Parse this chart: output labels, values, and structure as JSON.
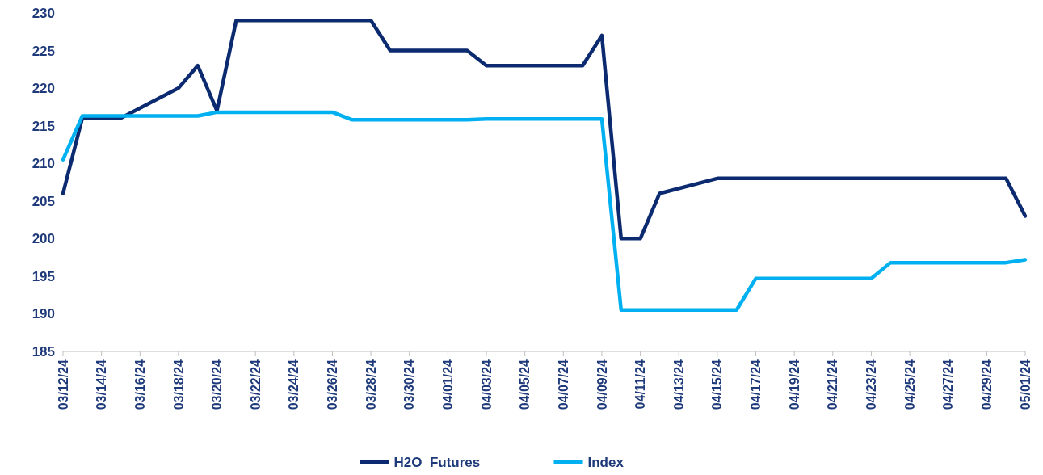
{
  "chart_data": {
    "type": "line",
    "ylim": [
      185,
      230
    ],
    "yticks": [
      185,
      190,
      195,
      200,
      205,
      210,
      215,
      220,
      225,
      230
    ],
    "xlim": [
      "--03-12",
      "--05-01"
    ],
    "xticks": [
      {
        "value": "--03-12",
        "label": "03/12/24"
      },
      {
        "value": "--03-14",
        "label": "03/14/24"
      },
      {
        "value": "--03-16",
        "label": "03/16/24"
      },
      {
        "value": "--03-18",
        "label": "03/18/24"
      },
      {
        "value": "--03-20",
        "label": "03/20/24"
      },
      {
        "value": "--03-22",
        "label": "03/22/24"
      },
      {
        "value": "--03-24",
        "label": "03/24/24"
      },
      {
        "value": "--03-26",
        "label": "03/26/24"
      },
      {
        "value": "--03-28",
        "label": "03/28/24"
      },
      {
        "value": "--03-30",
        "label": "03/30/24"
      },
      {
        "value": "--04-01",
        "label": "04/01/24"
      },
      {
        "value": "--04-03",
        "label": "04/03/24"
      },
      {
        "value": "--04-05",
        "label": "04/05/24"
      },
      {
        "value": "--04-07",
        "label": "04/07/24"
      },
      {
        "value": "--04-09",
        "label": "04/09/24"
      },
      {
        "value": "--04-11",
        "label": "04/11/24"
      },
      {
        "value": "--04-13",
        "label": "04/13/24"
      },
      {
        "value": "--04-15",
        "label": "04/15/24"
      },
      {
        "value": "--04-17",
        "label": "04/17/24"
      },
      {
        "value": "--04-19",
        "label": "04/19/24"
      },
      {
        "value": "--04-21",
        "label": "04/21/24"
      },
      {
        "value": "--04-23",
        "label": "04/23/24"
      },
      {
        "value": "--04-25",
        "label": "04/25/24"
      },
      {
        "value": "--04-27",
        "label": "04/27/24"
      },
      {
        "value": "--04-29",
        "label": "04/29/24"
      },
      {
        "value": "--05-01",
        "label": "05/01/24"
      }
    ],
    "grid": false,
    "legend": "bottom",
    "marker": "none",
    "line_style": "solid",
    "series": [
      {
        "name": "H2O  Futures",
        "color": "#0b2a6f",
        "x": [
          "--03-12",
          "--03-13",
          "--03-15",
          "--03-18",
          "--03-19",
          "--03-20",
          "--03-21",
          "--03-28",
          "--03-29",
          "--04-02",
          "--04-03",
          "--04-08",
          "--04-09",
          "--04-10",
          "--04-11",
          "--04-12",
          "--04-15",
          "--04-30",
          "--05-01"
        ],
        "values": [
          206,
          216,
          216,
          220,
          223,
          217,
          229,
          229,
          225,
          225,
          223,
          223,
          227,
          200,
          200,
          206,
          208,
          208,
          203
        ]
      },
      {
        "name": "Index",
        "color": "#00b0f0",
        "x": [
          "--03-12",
          "--03-13",
          "--03-19",
          "--03-20",
          "--03-26",
          "--03-27",
          "--04-02",
          "--04-03",
          "--04-09",
          "--04-10",
          "--04-16",
          "--04-17",
          "--04-23",
          "--04-24",
          "--04-30",
          "--05-01"
        ],
        "values": [
          210.5,
          216.3,
          216.3,
          216.8,
          216.8,
          215.8,
          215.8,
          215.9,
          215.9,
          190.5,
          190.5,
          194.7,
          194.7,
          196.8,
          196.8,
          197.2
        ]
      }
    ]
  }
}
